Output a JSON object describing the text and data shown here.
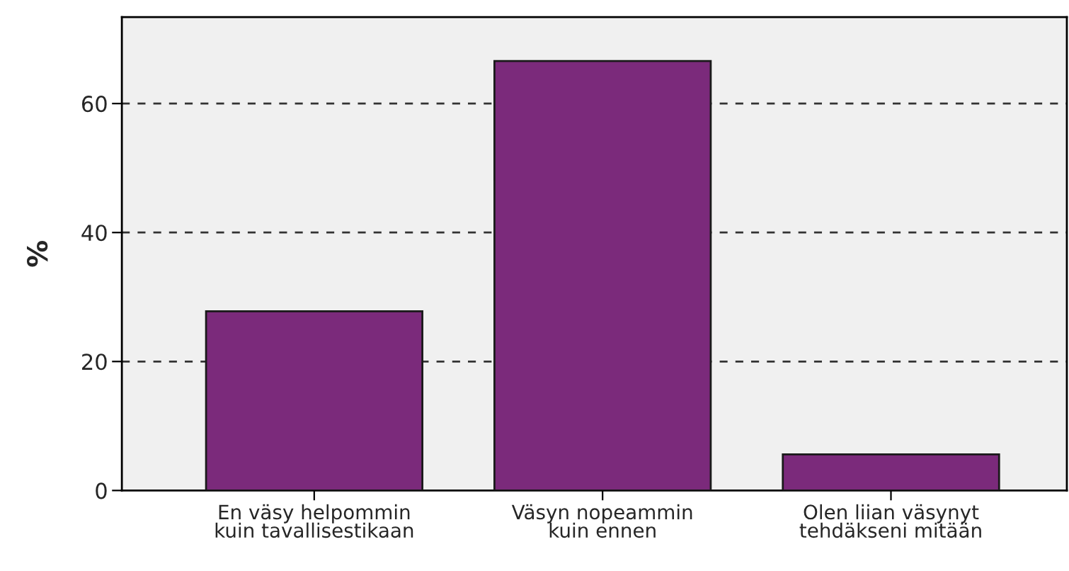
{
  "chart_data": {
    "type": "bar",
    "ylabel": "%",
    "categories": [
      "En väsy helpommin\nkuin tavallisestikaan",
      "Väsyn nopeammin\nkuin ennen",
      "Olen liian väsynyt\ntehdäkseni mitään"
    ],
    "values": [
      27.8,
      66.6,
      5.6
    ],
    "color": "#7b2a7b",
    "ylim": [
      0,
      73.4
    ],
    "yticks": [
      0,
      20,
      40,
      60
    ],
    "grid": "y"
  }
}
